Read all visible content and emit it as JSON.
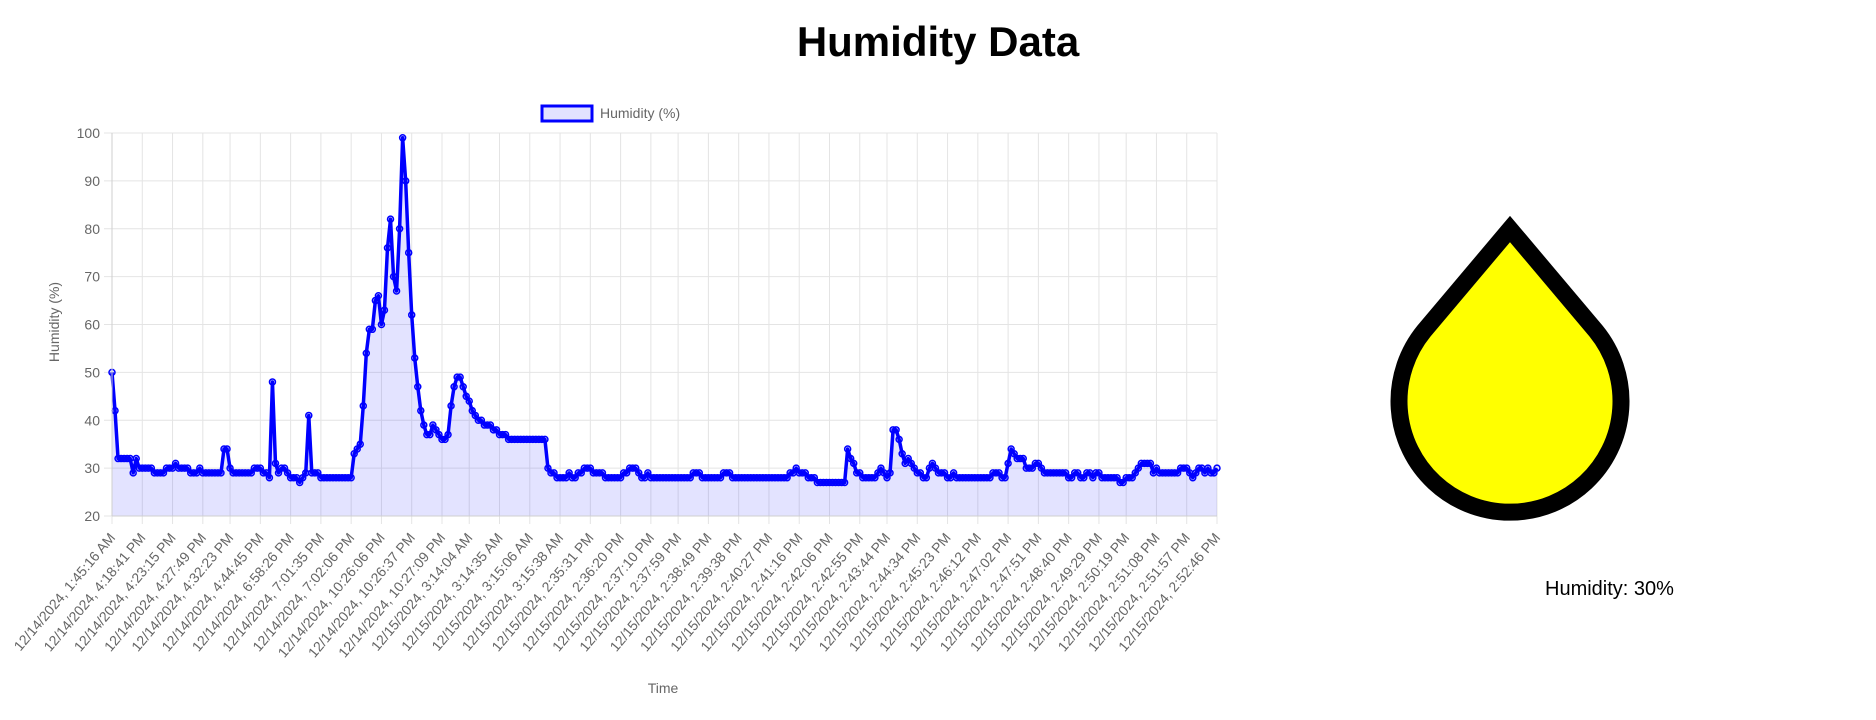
{
  "page": {
    "title": "Humidity Data"
  },
  "gauge": {
    "readout": "Humidity: 30%",
    "value_percent": 30,
    "fill_color": "#ffff00",
    "outline_color": "#000000",
    "icon": "water-drop-icon"
  },
  "chart_data": {
    "type": "area",
    "legend": {
      "label": "Humidity (%)",
      "placement": "top"
    },
    "xlabel": "Time",
    "ylabel": "Humidity (%)",
    "ylim": [
      20,
      100
    ],
    "yticks": [
      20,
      30,
      40,
      50,
      60,
      70,
      80,
      90,
      100
    ],
    "grid": true,
    "line_color": "#0000ff",
    "fill_color": "rgba(0,0,255,0.11)",
    "x_tick_labels": [
      "12/14/2024, 1:45:16 AM",
      "12/14/2024, 4:18:41 PM",
      "12/14/2024, 4:23:15 PM",
      "12/14/2024, 4:27:49 PM",
      "12/14/2024, 4:32:23 PM",
      "12/14/2024, 4:44:45 PM",
      "12/14/2024, 6:58:26 PM",
      "12/14/2024, 7:01:35 PM",
      "12/14/2024, 7:02:06 PM",
      "12/14/2024, 10:26:06 PM",
      "12/14/2024, 10:26:37 PM",
      "12/14/2024, 10:27:09 PM",
      "12/15/2024, 3:14:04 AM",
      "12/15/2024, 3:14:35 AM",
      "12/15/2024, 3:15:06 AM",
      "12/15/2024, 3:15:38 AM",
      "12/15/2024, 2:35:31 PM",
      "12/15/2024, 2:36:20 PM",
      "12/15/2024, 2:37:10 PM",
      "12/15/2024, 2:37:59 PM",
      "12/15/2024, 2:38:49 PM",
      "12/15/2024, 2:39:38 PM",
      "12/15/2024, 2:40:27 PM",
      "12/15/2024, 2:41:16 PM",
      "12/15/2024, 2:42:06 PM",
      "12/15/2024, 2:42:55 PM",
      "12/15/2024, 2:43:44 PM",
      "12/15/2024, 2:44:34 PM",
      "12/15/2024, 2:45:23 PM",
      "12/15/2024, 2:46:12 PM",
      "12/15/2024, 2:47:02 PM",
      "12/15/2024, 2:47:51 PM",
      "12/15/2024, 2:48:40 PM",
      "12/15/2024, 2:49:29 PM",
      "12/15/2024, 2:50:19 PM",
      "12/15/2024, 2:51:08 PM",
      "12/15/2024, 2:51:57 PM",
      "12/15/2024, 2:52:46 PM"
    ],
    "values": [
      50,
      42,
      32,
      32,
      32,
      32,
      32,
      29,
      32,
      30,
      30,
      30,
      30,
      30,
      29,
      29,
      29,
      29,
      30,
      30,
      30,
      31,
      30,
      30,
      30,
      30,
      29,
      29,
      29,
      30,
      29,
      29,
      29,
      29,
      29,
      29,
      29,
      34,
      34,
      30,
      29,
      29,
      29,
      29,
      29,
      29,
      29,
      30,
      30,
      30,
      29,
      29,
      28,
      48,
      31,
      29,
      30,
      30,
      29,
      28,
      28,
      28,
      27,
      28,
      29,
      41,
      29,
      29,
      29,
      28,
      28,
      28,
      28,
      28,
      28,
      28,
      28,
      28,
      28,
      28,
      33,
      34,
      35,
      43,
      54,
      59,
      59,
      65,
      66,
      60,
      63,
      76,
      82,
      70,
      67,
      80,
      99,
      90,
      75,
      62,
      53,
      47,
      42,
      39,
      37,
      37,
      39,
      38,
      37,
      36,
      36,
      37,
      43,
      47,
      49,
      49,
      47,
      45,
      44,
      42,
      41,
      40,
      40,
      39,
      39,
      39,
      38,
      38,
      37,
      37,
      37,
      36,
      36,
      36,
      36,
      36,
      36,
      36,
      36,
      36,
      36,
      36,
      36,
      36,
      30,
      29,
      29,
      28,
      28,
      28,
      28,
      29,
      28,
      28,
      29,
      29,
      30,
      30,
      30,
      29,
      29,
      29,
      29,
      28,
      28,
      28,
      28,
      28,
      28,
      29,
      29,
      30,
      30,
      30,
      29,
      28,
      28,
      29,
      28,
      28,
      28,
      28,
      28,
      28,
      28,
      28,
      28,
      28,
      28,
      28,
      28,
      28,
      29,
      29,
      29,
      28,
      28,
      28,
      28,
      28,
      28,
      28,
      29,
      29,
      29,
      28,
      28,
      28,
      28,
      28,
      28,
      28,
      28,
      28,
      28,
      28,
      28,
      28,
      28,
      28,
      28,
      28,
      28,
      28,
      29,
      29,
      30,
      29,
      29,
      29,
      28,
      28,
      28,
      27,
      27,
      27,
      27,
      27,
      27,
      27,
      27,
      27,
      27,
      34,
      32,
      31,
      29,
      29,
      28,
      28,
      28,
      28,
      28,
      29,
      30,
      29,
      28,
      29,
      38,
      38,
      36,
      33,
      31,
      32,
      31,
      30,
      29,
      29,
      28,
      28,
      30,
      31,
      30,
      29,
      29,
      29,
      28,
      28,
      29,
      28,
      28,
      28,
      28,
      28,
      28,
      28,
      28,
      28,
      28,
      28,
      28,
      29,
      29,
      29,
      28,
      28,
      31,
      34,
      33,
      32,
      32,
      32,
      30,
      30,
      30,
      31,
      31,
      30,
      29,
      29,
      29,
      29,
      29,
      29,
      29,
      29,
      28,
      28,
      29,
      29,
      28,
      28,
      29,
      29,
      28,
      29,
      29,
      28,
      28,
      28,
      28,
      28,
      28,
      27,
      27,
      28,
      28,
      28,
      29,
      30,
      31,
      31,
      31,
      31,
      29,
      30,
      29,
      29,
      29,
      29,
      29,
      29,
      29,
      30,
      30,
      30,
      29,
      28,
      29,
      30,
      30,
      29,
      30,
      29,
      29,
      30
    ]
  }
}
